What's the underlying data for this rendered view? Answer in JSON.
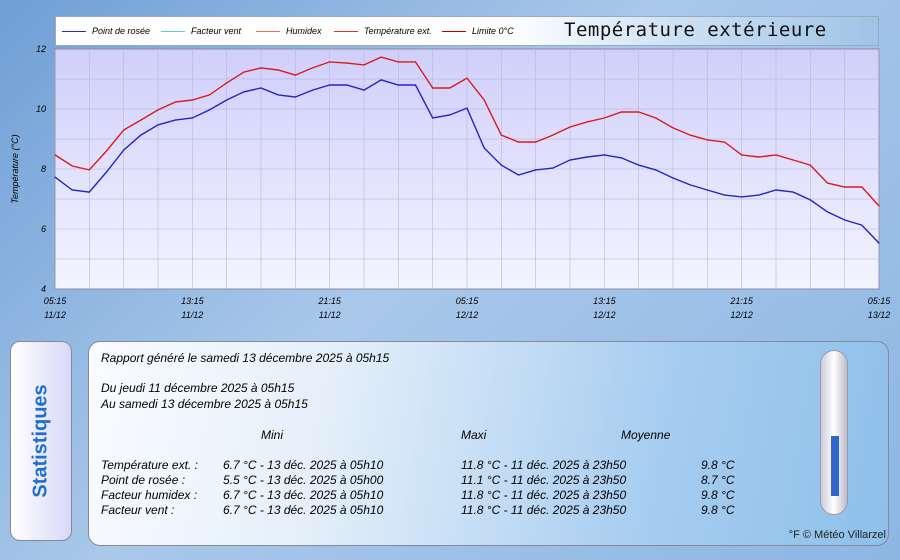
{
  "chart_data": {
    "type": "line",
    "title": "Température extérieure",
    "ylabel": "Température (°C)",
    "xlabel": "",
    "ylim": [
      4,
      12
    ],
    "yticks": [
      4,
      6,
      8,
      10,
      12
    ],
    "x_hours": [
      0,
      1,
      2,
      3,
      4,
      5,
      6,
      7,
      8,
      9,
      10,
      11,
      12,
      13,
      14,
      15,
      16,
      17,
      18,
      19,
      20,
      21,
      22,
      23,
      24,
      25,
      26,
      27,
      28,
      29,
      30,
      31,
      32,
      33,
      34,
      35,
      36,
      37,
      38,
      39,
      40,
      41,
      42,
      43,
      44,
      45,
      46,
      47,
      48
    ],
    "xlim": [
      0,
      48
    ],
    "xticks": [
      {
        "h": 0,
        "time": "05:15",
        "date": "11/12"
      },
      {
        "h": 8,
        "time": "13:15",
        "date": "11/12"
      },
      {
        "h": 16,
        "time": "21:15",
        "date": "11/12"
      },
      {
        "h": 24,
        "time": "05:15",
        "date": "12/12"
      },
      {
        "h": 32,
        "time": "13:15",
        "date": "12/12"
      },
      {
        "h": 40,
        "time": "21:15",
        "date": "12/12"
      },
      {
        "h": 48,
        "time": "05:15",
        "date": "13/12"
      }
    ],
    "legend": [
      {
        "name": "Point de rosée",
        "color": "#2a2ab8"
      },
      {
        "name": "Facteur vent",
        "color": "#5cc8e8"
      },
      {
        "name": "Humidex",
        "color": "#e87060"
      },
      {
        "name": "Température ext.",
        "color": "#e03030"
      },
      {
        "name": "Limite 0°C",
        "color": "#c00000"
      }
    ],
    "series": [
      {
        "name": "Température ext.",
        "color": "#dd1a1a",
        "values": [
          8.47,
          8.1,
          7.97,
          8.6,
          9.3,
          9.63,
          9.97,
          10.23,
          10.3,
          10.47,
          10.87,
          11.23,
          11.37,
          11.3,
          11.13,
          11.37,
          11.57,
          11.53,
          11.47,
          11.73,
          11.57,
          11.57,
          10.7,
          10.7,
          11.03,
          10.3,
          9.13,
          8.9,
          8.9,
          9.13,
          9.4,
          9.57,
          9.7,
          9.9,
          9.9,
          9.7,
          9.37,
          9.13,
          8.97,
          8.9,
          8.47,
          8.4,
          8.47,
          8.3,
          8.13,
          7.53,
          7.4,
          7.4,
          6.77
        ]
      },
      {
        "name": "Point de rosée",
        "color": "#2424c8",
        "values": [
          7.73,
          7.3,
          7.23,
          7.9,
          8.63,
          9.13,
          9.47,
          9.63,
          9.7,
          9.97,
          10.3,
          10.57,
          10.7,
          10.47,
          10.4,
          10.63,
          10.8,
          10.8,
          10.63,
          10.97,
          10.8,
          10.8,
          9.7,
          9.8,
          10.03,
          8.7,
          8.13,
          7.8,
          7.97,
          8.03,
          8.3,
          8.4,
          8.47,
          8.37,
          8.13,
          7.97,
          7.7,
          7.47,
          7.3,
          7.13,
          7.07,
          7.13,
          7.3,
          7.23,
          6.97,
          6.57,
          6.3,
          6.13,
          5.53
        ]
      }
    ]
  },
  "stats": {
    "tab_label": "Statistiques",
    "generated": "Rapport généré le samedi 13 décembre 2025 à 05h15",
    "from": "Du jeudi 11 décembre 2025 à 05h15",
    "to": "Au samedi 13 décembre 2025 à 05h15",
    "headers": {
      "mini": "Mini",
      "maxi": "Maxi",
      "moyenne": "Moyenne"
    },
    "rows": [
      {
        "label": "Température ext. :",
        "mini": "6.7 °C - 13 déc. 2025 à 05h10",
        "maxi": "11.8 °C - 11 déc. 2025 à 23h50",
        "moy": "9.8 °C"
      },
      {
        "label": "Point de rosée :",
        "mini": "5.5 °C - 13 déc. 2025 à 05h00",
        "maxi": "11.1 °C - 11 déc. 2025 à 23h50",
        "moy": "8.7 °C"
      },
      {
        "label": "Facteur humidex :",
        "mini": "6.7 °C - 13 déc. 2025 à 05h10",
        "maxi": "11.8 °C - 11 déc. 2025 à 23h50",
        "moy": "9.8 °C"
      },
      {
        "label": "Facteur vent :",
        "mini": "6.7 °C - 13 déc. 2025 à 05h10",
        "maxi": "11.8 °C - 11 déc. 2025 à 23h50",
        "moy": "9.8 °C"
      }
    ],
    "copyright": "°F © Météo Villarzel"
  }
}
